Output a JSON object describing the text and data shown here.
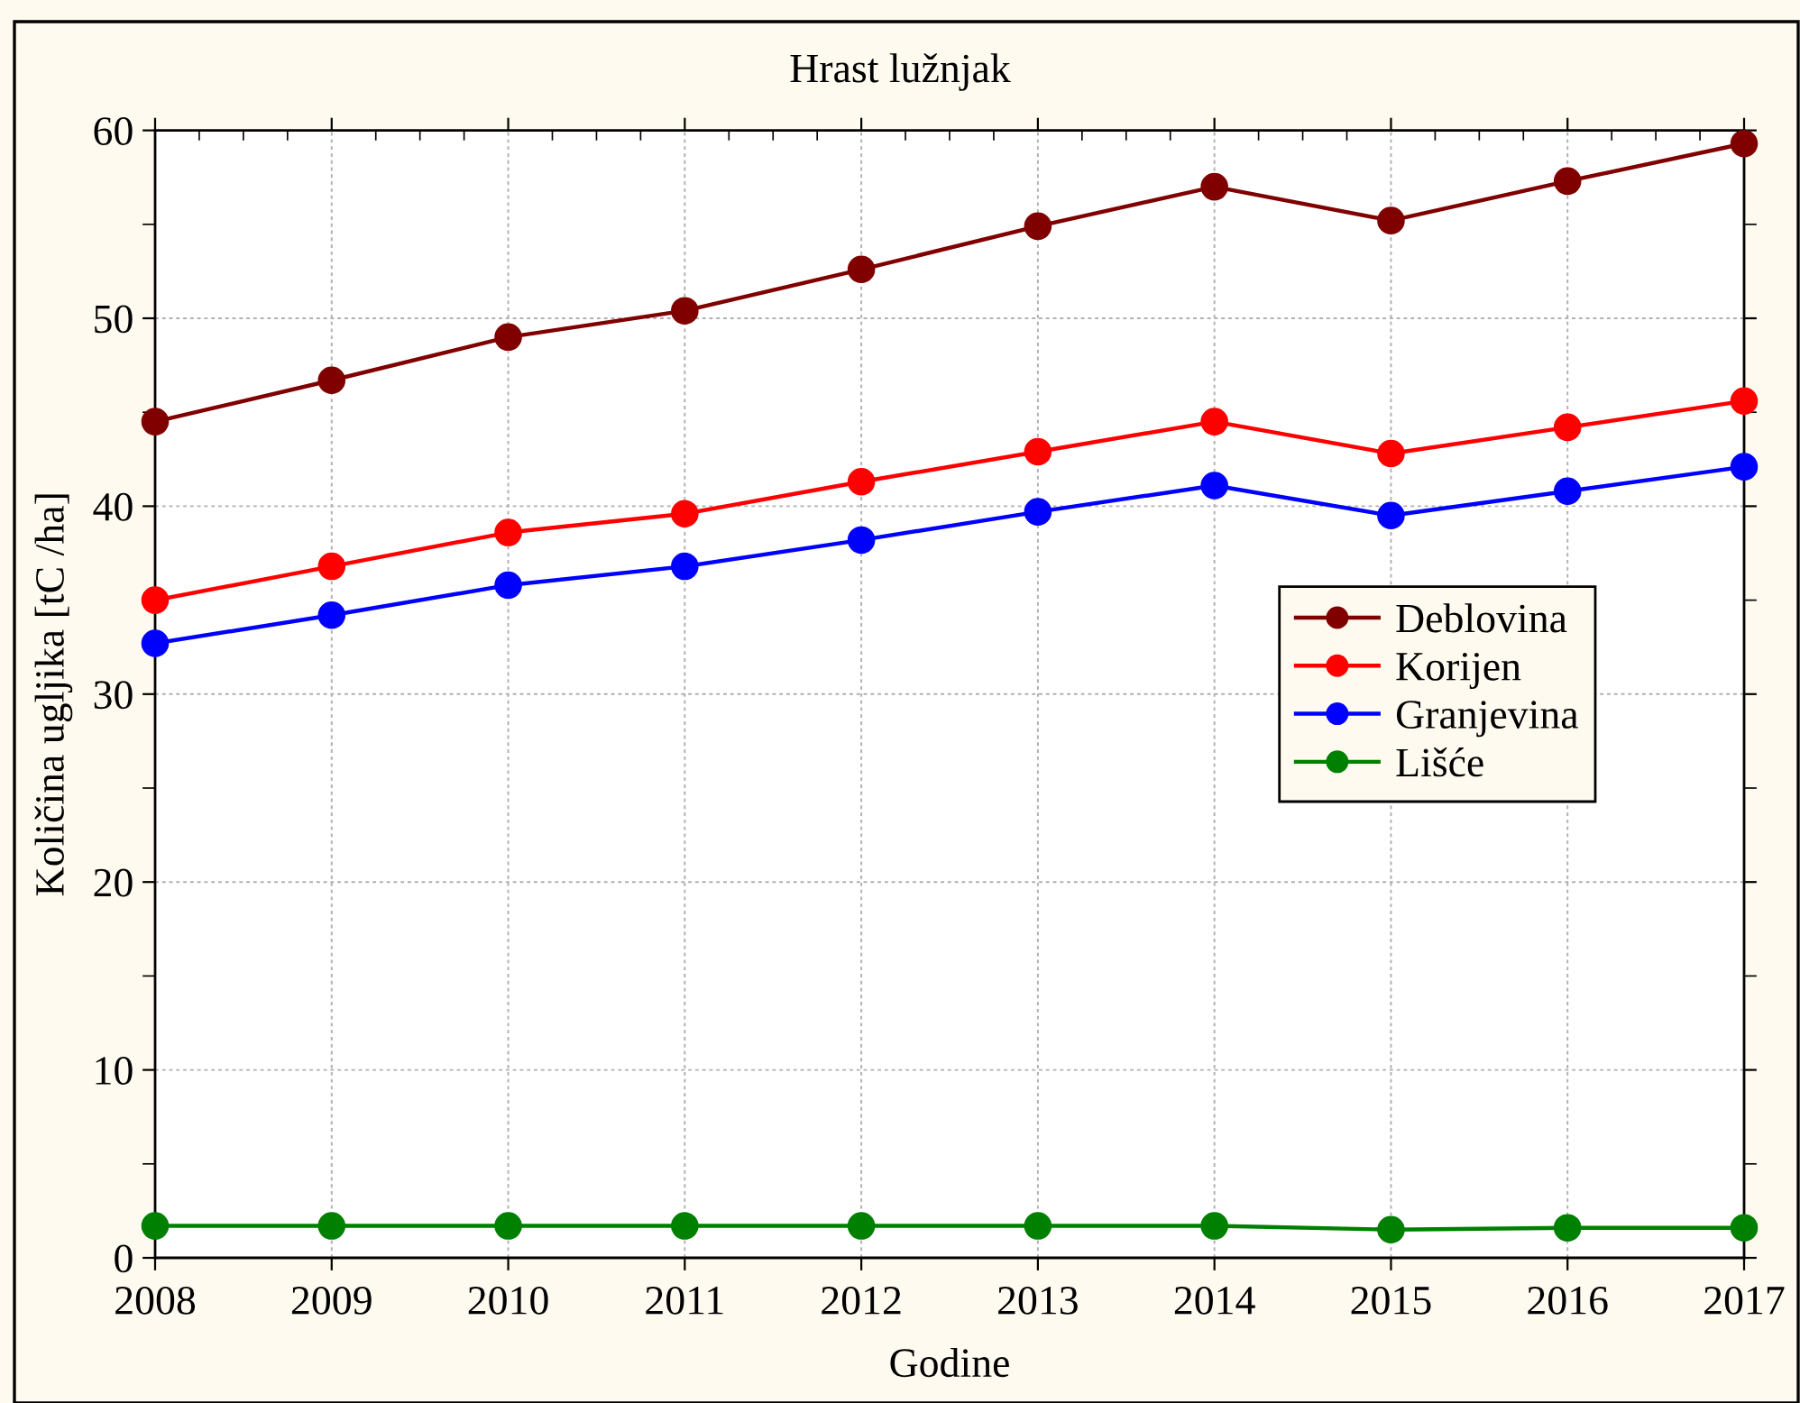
{
  "chart_data": {
    "type": "line",
    "title": "Hrast lužnjak",
    "xlabel": "Godine",
    "ylabel": "Količina ugljika [tC /ha]",
    "x": [
      2008,
      2009,
      2010,
      2011,
      2012,
      2013,
      2014,
      2015,
      2016,
      2017
    ],
    "series": [
      {
        "name": "Deblovina",
        "color": "#800000",
        "values": [
          44.5,
          46.7,
          49.0,
          50.4,
          52.6,
          54.9,
          57.0,
          55.2,
          57.3,
          59.3
        ]
      },
      {
        "name": "Korijen",
        "color": "#ff0000",
        "values": [
          35.0,
          36.8,
          38.6,
          39.6,
          41.3,
          42.9,
          44.5,
          42.8,
          44.2,
          45.6
        ]
      },
      {
        "name": "Granjevina",
        "color": "#0000ff",
        "values": [
          32.7,
          34.2,
          35.8,
          36.8,
          38.2,
          39.7,
          41.1,
          39.5,
          40.8,
          42.1
        ]
      },
      {
        "name": "Lišće",
        "color": "#008000",
        "values": [
          1.7,
          1.7,
          1.7,
          1.7,
          1.7,
          1.7,
          1.7,
          1.5,
          1.6,
          1.6
        ]
      }
    ],
    "xlim": [
      2008,
      2017
    ],
    "xticks": [
      2008,
      2009,
      2010,
      2011,
      2012,
      2013,
      2014,
      2015,
      2016,
      2017
    ],
    "ylim": [
      0,
      60
    ],
    "yticks": [
      0,
      10,
      20,
      30,
      40,
      50,
      60
    ],
    "grid": true,
    "legend": "center right",
    "marker": "circle",
    "line_style": "solid"
  }
}
